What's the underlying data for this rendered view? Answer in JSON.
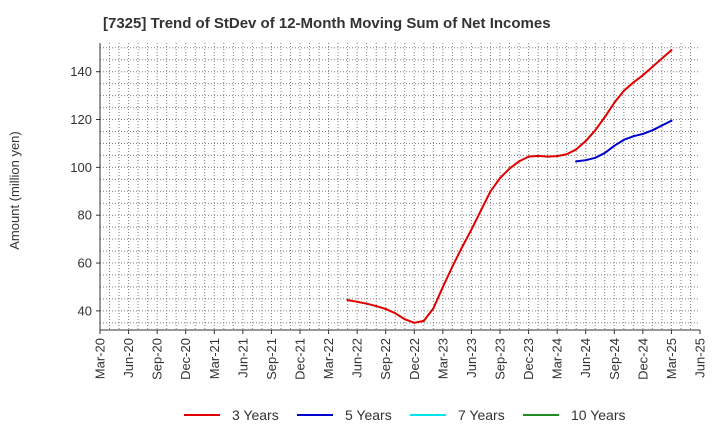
{
  "chart_data": {
    "type": "line",
    "title": "[7325]  Trend of StDev of 12-Month Moving Sum of Net Incomes",
    "xlabel": "",
    "ylabel": "Amount (million yen)",
    "ylim": [
      32,
      152
    ],
    "yticks": [
      40,
      60,
      80,
      100,
      120,
      140
    ],
    "x_range": [
      "2020-03",
      "2025-06"
    ],
    "x_tick_labels": [
      "Mar-20",
      "Jun-20",
      "Sep-20",
      "Dec-20",
      "Mar-21",
      "Jun-21",
      "Sep-21",
      "Dec-21",
      "Mar-22",
      "Jun-22",
      "Sep-22",
      "Dec-22",
      "Mar-23",
      "Jun-23",
      "Sep-23",
      "Dec-23",
      "Mar-24",
      "Jun-24",
      "Sep-24",
      "Dec-24",
      "Mar-25",
      "Jun-25"
    ],
    "grid": true,
    "legend_position": "bottom",
    "series": [
      {
        "name": "3 Years",
        "color": "#e00000",
        "x": [
          "2022-05",
          "2022-06",
          "2022-07",
          "2022-08",
          "2022-09",
          "2022-10",
          "2022-11",
          "2022-12",
          "2023-01",
          "2023-02",
          "2023-03",
          "2023-04",
          "2023-05",
          "2023-06",
          "2023-07",
          "2023-08",
          "2023-09",
          "2023-10",
          "2023-11",
          "2023-12",
          "2024-01",
          "2024-02",
          "2024-03",
          "2024-04",
          "2024-05",
          "2024-06",
          "2024-07",
          "2024-08",
          "2024-09",
          "2024-10",
          "2024-11",
          "2024-12",
          "2025-01",
          "2025-02",
          "2025-03"
        ],
        "values": [
          44.5,
          43.8,
          43.0,
          42.0,
          40.8,
          39.0,
          36.5,
          35.0,
          35.8,
          41.0,
          50.0,
          58.5,
          66.5,
          74.0,
          82.0,
          90.0,
          95.5,
          99.5,
          102.5,
          104.5,
          104.8,
          104.5,
          104.7,
          105.5,
          107.5,
          111.0,
          115.5,
          121.0,
          127.0,
          132.0,
          135.5,
          138.5,
          142.0,
          145.5,
          149.0
        ]
      },
      {
        "name": "5 Years",
        "color": "#0000cc",
        "x": [
          "2024-05",
          "2024-06",
          "2024-07",
          "2024-08",
          "2024-09",
          "2024-10",
          "2024-11",
          "2024-12",
          "2025-01",
          "2025-02",
          "2025-03"
        ],
        "values": [
          102.5,
          103.0,
          104.0,
          106.0,
          109.0,
          111.5,
          113.0,
          114.0,
          115.5,
          117.5,
          119.5
        ]
      },
      {
        "name": "7 Years",
        "color": "#00e5ee",
        "x": [],
        "values": []
      },
      {
        "name": "10 Years",
        "color": "#228b22",
        "x": [],
        "values": []
      }
    ]
  }
}
